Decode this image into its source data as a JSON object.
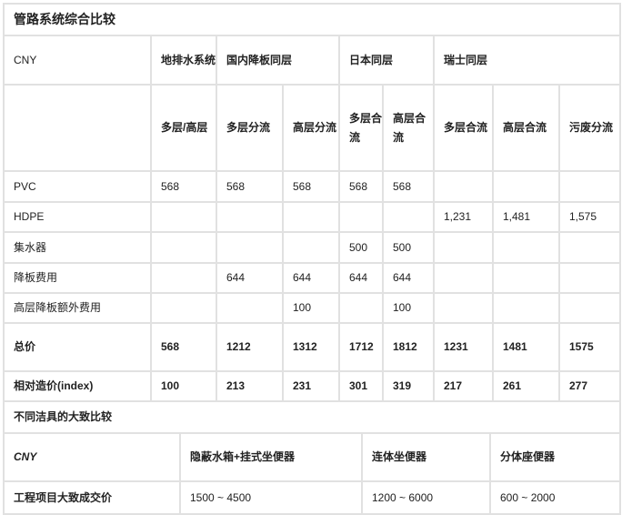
{
  "table1": {
    "title": "管路系统综合比较",
    "corner": "CNY",
    "groups": [
      "地排水系统",
      "国内降板同层",
      "日本同层",
      "瑞士同层"
    ],
    "subheaders": [
      "多层/高层",
      "多层分流",
      "高层分流",
      "多层合流",
      "高层合流",
      "多层合流",
      "高层合流",
      "污废分流"
    ],
    "rows": [
      {
        "label": "PVC",
        "values": [
          "568",
          "568",
          "568",
          "568",
          "568",
          "",
          "",
          ""
        ]
      },
      {
        "label": "HDPE",
        "values": [
          "",
          "",
          "",
          "",
          "",
          "1,231",
          "1,481",
          "1,575"
        ]
      },
      {
        "label": "集水器",
        "values": [
          "",
          "",
          "",
          "500",
          "500",
          "",
          "",
          ""
        ]
      },
      {
        "label": "降板费用",
        "values": [
          "",
          "644",
          "644",
          "644",
          "644",
          "",
          "",
          ""
        ]
      },
      {
        "label": "高层降板额外费用",
        "values": [
          "",
          "",
          "100",
          "",
          "100",
          "",
          "",
          ""
        ]
      },
      {
        "label": "总价",
        "values": [
          "568",
          "1212",
          "1312",
          "1712",
          "1812",
          "1231",
          "1481",
          "1575"
        ]
      },
      {
        "label": "相对造价(index)",
        "values": [
          "100",
          "213",
          "231",
          "301",
          "319",
          "217",
          "261",
          "277"
        ]
      }
    ]
  },
  "table2": {
    "title": "不同洁具的大致比较",
    "corner": "CNY",
    "headers": [
      "隐蔽水箱+挂式坐便器",
      "连体坐便器",
      "分体座便器"
    ],
    "row": {
      "label": "工程项目大致成交价",
      "values": [
        "1500 ~ 4500",
        "1200 ~ 6000",
        "600 ~ 2000"
      ]
    }
  }
}
